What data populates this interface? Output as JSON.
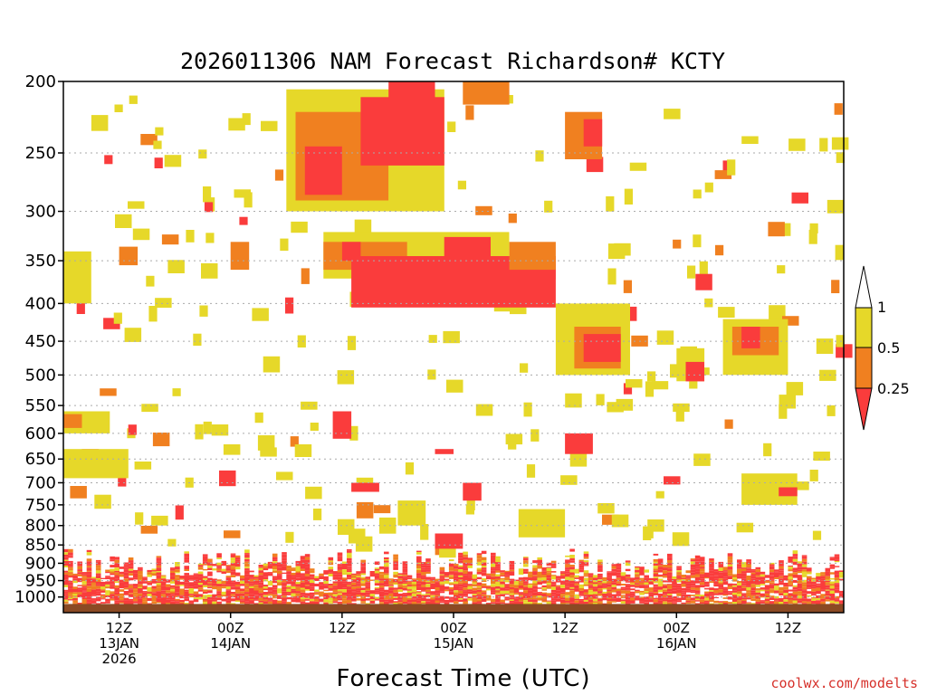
{
  "chart_data": {
    "type": "heatmap",
    "title": "2026011306 NAM Forecast Richardson# KCTY",
    "xlabel": "Forecast Time (UTC)",
    "ylabel": "",
    "credit": "coolwx.com/modelts",
    "forecast_hours": [
      0,
      84
    ],
    "pressure_range_hPa": [
      1050,
      200
    ],
    "y_ticks": [
      200,
      250,
      300,
      350,
      400,
      450,
      500,
      550,
      600,
      650,
      700,
      750,
      800,
      850,
      900,
      950,
      1000
    ],
    "x_ticks": [
      {
        "hour": 6,
        "lines": [
          "12Z",
          "13JAN",
          "2026"
        ]
      },
      {
        "hour": 18,
        "lines": [
          "00Z",
          "14JAN"
        ]
      },
      {
        "hour": 30,
        "lines": [
          "12Z"
        ]
      },
      {
        "hour": 42,
        "lines": [
          "00Z",
          "15JAN"
        ]
      },
      {
        "hour": 54,
        "lines": [
          "12Z"
        ]
      },
      {
        "hour": 66,
        "lines": [
          "00Z",
          "16JAN"
        ]
      },
      {
        "hour": 78,
        "lines": [
          "12Z"
        ]
      }
    ],
    "colorbar": {
      "labels": [
        "1",
        "0.5",
        "0.25"
      ],
      "bins": [
        {
          "range": "0.5-1",
          "color": "#e6d829"
        },
        {
          "range": "0.25-0.5",
          "color": "#f08020"
        },
        {
          "range": "<0.25",
          "color": "#fa3c3c"
        }
      ]
    },
    "colors": {
      "yellow": "#e6d829",
      "orange": "#f08020",
      "red": "#fa3c3c",
      "ground": "#8b4a24",
      "grid": "#aaaaaa"
    },
    "regions": [
      {
        "h": [
          24,
          41
        ],
        "p": [
          205,
          300
        ],
        "cls": "y"
      },
      {
        "h": [
          25,
          35
        ],
        "p": [
          220,
          290
        ],
        "cls": "o"
      },
      {
        "h": [
          26,
          30
        ],
        "p": [
          245,
          285
        ],
        "cls": "r"
      },
      {
        "h": [
          32,
          41
        ],
        "p": [
          210,
          260
        ],
        "cls": "r"
      },
      {
        "h": [
          35,
          40
        ],
        "p": [
          200,
          215
        ],
        "cls": "r"
      },
      {
        "h": [
          43,
          48
        ],
        "p": [
          200,
          215
        ],
        "cls": "o"
      },
      {
        "h": [
          54,
          58
        ],
        "p": [
          220,
          255
        ],
        "cls": "o"
      },
      {
        "h": [
          56,
          58
        ],
        "p": [
          225,
          245
        ],
        "cls": "r"
      },
      {
        "h": [
          18,
          20
        ],
        "p": [
          330,
          360
        ],
        "cls": "o"
      },
      {
        "h": [
          6,
          8
        ],
        "p": [
          335,
          355
        ],
        "cls": "o"
      },
      {
        "h": [
          28,
          48
        ],
        "p": [
          320,
          370
        ],
        "cls": "y"
      },
      {
        "h": [
          28,
          37
        ],
        "p": [
          330,
          360
        ],
        "cls": "o"
      },
      {
        "h": [
          30,
          32
        ],
        "p": [
          330,
          350
        ],
        "cls": "r"
      },
      {
        "h": [
          31,
          53
        ],
        "p": [
          345,
          405
        ],
        "cls": "r"
      },
      {
        "h": [
          41,
          46
        ],
        "p": [
          325,
          370
        ],
        "cls": "r"
      },
      {
        "h": [
          48,
          53
        ],
        "p": [
          330,
          360
        ],
        "cls": "o"
      },
      {
        "h": [
          53,
          61
        ],
        "p": [
          400,
          500
        ],
        "cls": "y"
      },
      {
        "h": [
          55,
          60
        ],
        "p": [
          430,
          490
        ],
        "cls": "o"
      },
      {
        "h": [
          56,
          60
        ],
        "p": [
          440,
          480
        ],
        "cls": "r"
      },
      {
        "h": [
          71,
          78
        ],
        "p": [
          420,
          500
        ],
        "cls": "y"
      },
      {
        "h": [
          72,
          77
        ],
        "p": [
          430,
          470
        ],
        "cls": "o"
      },
      {
        "h": [
          73,
          75
        ],
        "p": [
          430,
          460
        ],
        "cls": "r"
      },
      {
        "h": [
          0,
          3
        ],
        "p": [
          340,
          400
        ],
        "cls": "y"
      },
      {
        "h": [
          0,
          5
        ],
        "p": [
          560,
          600
        ],
        "cls": "y"
      },
      {
        "h": [
          0,
          2
        ],
        "p": [
          565,
          590
        ],
        "cls": "o"
      },
      {
        "h": [
          0,
          7
        ],
        "p": [
          630,
          690
        ],
        "cls": "y"
      },
      {
        "h": [
          29,
          31
        ],
        "p": [
          560,
          610
        ],
        "cls": "r"
      },
      {
        "h": [
          40,
          42
        ],
        "p": [
          630,
          640
        ],
        "cls": "r"
      },
      {
        "h": [
          31,
          34
        ],
        "p": [
          700,
          720
        ],
        "cls": "r"
      },
      {
        "h": [
          43,
          45
        ],
        "p": [
          700,
          740
        ],
        "cls": "r"
      },
      {
        "h": [
          50,
          53
        ],
        "p": [
          780,
          820
        ],
        "cls": "r"
      },
      {
        "h": [
          49,
          54
        ],
        "p": [
          760,
          830
        ],
        "cls": "y"
      },
      {
        "h": [
          73,
          79
        ],
        "p": [
          680,
          750
        ],
        "cls": "y"
      },
      {
        "h": [
          77,
          79
        ],
        "p": [
          710,
          730
        ],
        "cls": "r"
      },
      {
        "h": [
          66,
          69
        ],
        "p": [
          460,
          510
        ],
        "cls": "y"
      },
      {
        "h": [
          67,
          69
        ],
        "p": [
          480,
          510
        ],
        "cls": "r"
      },
      {
        "h": [
          36,
          39
        ],
        "p": [
          740,
          800
        ],
        "cls": "y"
      },
      {
        "h": [
          40,
          43
        ],
        "p": [
          820,
          860
        ],
        "cls": "r"
      },
      {
        "h": [
          54,
          57
        ],
        "p": [
          600,
          640
        ],
        "cls": "r"
      }
    ],
    "boundary_layer": {
      "top_hPa_range": [
        860,
        945
      ],
      "bottom_hPa": 1020,
      "ground_hPa": [
        1022,
        1050
      ]
    }
  }
}
